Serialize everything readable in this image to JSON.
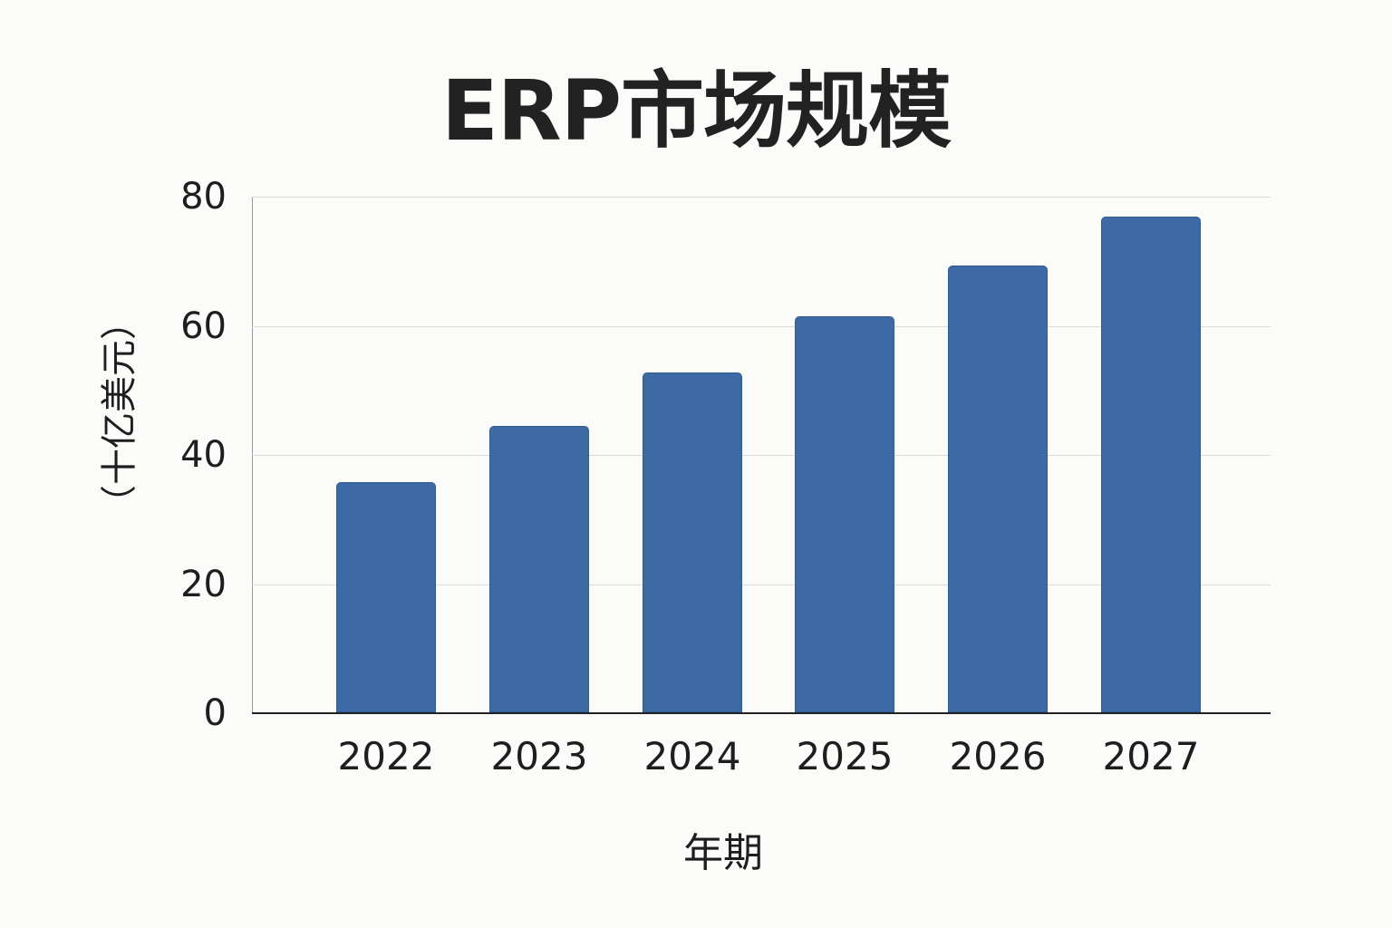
{
  "chart_data": {
    "type": "bar",
    "title": "ERP市场规模",
    "xlabel": "年期",
    "ylabel": "（十亿美元）",
    "categories": [
      "2022",
      "2023",
      "2024",
      "2025",
      "2026",
      "2027"
    ],
    "values": [
      35.6,
      44.4,
      52.6,
      61.3,
      69.2,
      76.8
    ],
    "ylim": [
      0,
      80
    ],
    "yticks": [
      "0",
      "20",
      "40",
      "60",
      "80"
    ],
    "grid": true,
    "legend": null,
    "bar_color": "#3d6aa5"
  }
}
